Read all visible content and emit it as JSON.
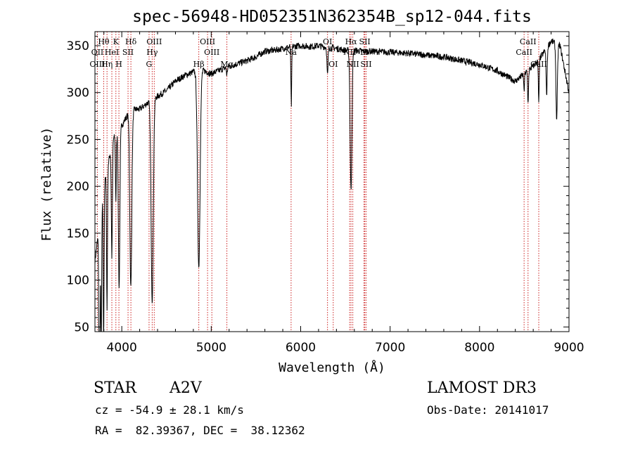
{
  "chart_data": {
    "type": "line",
    "title": "spec-56948-HD052351N362354B_sp12-044.fits",
    "xlabel": "Wavelength (Å)",
    "ylabel": "Flux (relative)",
    "xlim": [
      3700,
      9000
    ],
    "ylim": [
      45,
      365
    ],
    "xticks": [
      4000,
      5000,
      6000,
      7000,
      8000,
      9000
    ],
    "yticks": [
      50,
      100,
      150,
      200,
      250,
      300,
      350
    ],
    "grid": false,
    "line_color": "#000000",
    "marker_color": "#cc2222",
    "continuum": [
      [
        3700,
        120
      ],
      [
        3800,
        200
      ],
      [
        3900,
        250
      ],
      [
        4000,
        265
      ],
      [
        4100,
        282
      ],
      [
        4200,
        282
      ],
      [
        4300,
        290
      ],
      [
        4400,
        296
      ],
      [
        4500,
        302
      ],
      [
        4600,
        312
      ],
      [
        4700,
        318
      ],
      [
        4800,
        322
      ],
      [
        4900,
        324
      ],
      [
        5000,
        320
      ],
      [
        5100,
        324
      ],
      [
        5200,
        328
      ],
      [
        5300,
        331
      ],
      [
        5400,
        334
      ],
      [
        5500,
        338
      ],
      [
        5600,
        344
      ],
      [
        5700,
        345
      ],
      [
        5800,
        347
      ],
      [
        5900,
        349
      ],
      [
        6000,
        350
      ],
      [
        6100,
        349
      ],
      [
        6200,
        350
      ],
      [
        6300,
        348
      ],
      [
        6400,
        347
      ],
      [
        6500,
        345
      ],
      [
        6600,
        345
      ],
      [
        6700,
        344
      ],
      [
        6800,
        344
      ],
      [
        7000,
        343
      ],
      [
        7200,
        342
      ],
      [
        7400,
        340
      ],
      [
        7600,
        338
      ],
      [
        7800,
        334
      ],
      [
        8000,
        330
      ],
      [
        8200,
        323
      ],
      [
        8400,
        312
      ],
      [
        8500,
        320
      ],
      [
        8600,
        328
      ],
      [
        8700,
        340
      ],
      [
        8800,
        355
      ],
      [
        8900,
        350
      ],
      [
        9000,
        300
      ]
    ],
    "absorption": [
      [
        3750,
        230,
        6
      ],
      [
        3770,
        150,
        5
      ],
      [
        3797,
        160,
        5
      ],
      [
        3835,
        150,
        5
      ],
      [
        3889,
        120,
        6
      ],
      [
        3934,
        70,
        5
      ],
      [
        3970,
        170,
        8
      ],
      [
        4101,
        190,
        11
      ],
      [
        4340,
        215,
        12
      ],
      [
        4861,
        210,
        14
      ],
      [
        5175,
        8,
        5
      ],
      [
        5890,
        15,
        3
      ],
      [
        5896,
        60,
        4
      ],
      [
        6300,
        30,
        6
      ],
      [
        6563,
        150,
        10
      ],
      [
        8498,
        20,
        4
      ],
      [
        8542,
        35,
        5
      ],
      [
        8662,
        45,
        5
      ],
      [
        8750,
        50,
        6
      ],
      [
        8862,
        80,
        8
      ]
    ],
    "lines": [
      {
        "label": "Hθ",
        "wave": 3798,
        "row": 0
      },
      {
        "label": "K",
        "wave": 3934,
        "row": 0
      },
      {
        "label": "Hδ",
        "wave": 4102,
        "row": 0
      },
      {
        "label": "OIII",
        "wave": 4363,
        "row": 0
      },
      {
        "label": "OIII",
        "wave": 4959,
        "row": 0
      },
      {
        "label": "OI",
        "wave": 6300,
        "row": 0
      },
      {
        "label": "Hα",
        "wave": 6563,
        "row": 0
      },
      {
        "label": "SII",
        "wave": 6717,
        "row": 0
      },
      {
        "label": "CaII",
        "wave": 8542,
        "row": 0
      },
      {
        "label": "OII",
        "wave": 3727,
        "row": 1
      },
      {
        "label": "HeI",
        "wave": 3889,
        "row": 1
      },
      {
        "label": "SII",
        "wave": 4070,
        "row": 1
      },
      {
        "label": "Hγ",
        "wave": 4340,
        "row": 1
      },
      {
        "label": "OIII",
        "wave": 5007,
        "row": 1
      },
      {
        "label": "Na",
        "wave": 5893,
        "row": 1
      },
      {
        "label": "NII",
        "wave": 6548,
        "row": 1
      },
      {
        "label": "Li",
        "wave": 6708,
        "row": 1
      },
      {
        "label": "CaII",
        "wave": 8498,
        "row": 1
      },
      {
        "label": "OIII",
        "wave": 3727,
        "row": 2
      },
      {
        "label": "Hη",
        "wave": 3835,
        "row": 2
      },
      {
        "label": "H",
        "wave": 3968,
        "row": 2
      },
      {
        "label": "G",
        "wave": 4305,
        "row": 2
      },
      {
        "label": "Hβ",
        "wave": 4861,
        "row": 2
      },
      {
        "label": "Mg",
        "wave": 5175,
        "row": 2
      },
      {
        "label": "OI",
        "wave": 6364,
        "row": 2
      },
      {
        "label": "NII",
        "wave": 6583,
        "row": 2
      },
      {
        "label": "SII",
        "wave": 6731,
        "row": 2
      },
      {
        "label": "CaII",
        "wave": 8662,
        "row": 2
      }
    ]
  },
  "info": {
    "class": "STAR",
    "subclass": "A2V",
    "survey": "LAMOST DR3",
    "cz": "cz = -54.9 ± 28.1 km/s",
    "obs_date": "Obs-Date: 20141017",
    "coords": "RA =  82.39367, DEC =  38.12362"
  }
}
